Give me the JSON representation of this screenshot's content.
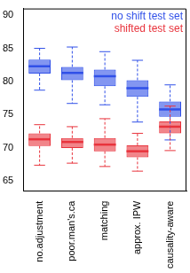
{
  "chart_data": {
    "type": "box",
    "categories": [
      "no.adjustment",
      "poor.man's.ca",
      "matching",
      "approx. IPW",
      "causality-aware"
    ],
    "series": [
      {
        "name": "no shift test set",
        "color": "#3050e8",
        "values": [
          {
            "min": 78.7,
            "q1": 81.2,
            "median": 82.3,
            "q3": 83.3,
            "max": 85.0
          },
          {
            "min": 76.7,
            "q1": 80.2,
            "median": 81.3,
            "q3": 82.2,
            "max": 85.2
          },
          {
            "min": 76.5,
            "q1": 79.3,
            "median": 80.8,
            "q3": 81.8,
            "max": 84.5
          },
          {
            "min": 73.9,
            "q1": 77.7,
            "median": 79.0,
            "q3": 80.2,
            "max": 83.2
          },
          {
            "min": 71.2,
            "q1": 74.7,
            "median": 75.8,
            "q3": 77.0,
            "max": 79.5
          }
        ]
      },
      {
        "name": "shifted test set",
        "color": "#e8333c",
        "values": [
          {
            "min": 67.4,
            "q1": 70.3,
            "median": 71.3,
            "q3": 72.2,
            "max": 73.5
          },
          {
            "min": 67.7,
            "q1": 70.0,
            "median": 70.9,
            "q3": 71.5,
            "max": 73.2
          },
          {
            "min": 67.2,
            "q1": 69.5,
            "median": 70.5,
            "q3": 71.5,
            "max": 74.4
          },
          {
            "min": 66.5,
            "q1": 68.6,
            "median": 69.5,
            "q3": 70.4,
            "max": 72.2
          },
          {
            "min": 69.6,
            "q1": 72.2,
            "median": 73.2,
            "q3": 74.0,
            "max": 76.3
          }
        ]
      }
    ],
    "ylim": [
      63.5,
      91
    ],
    "yticks": [
      65,
      70,
      75,
      80,
      85,
      90
    ],
    "legend": "top right",
    "grid": false
  }
}
